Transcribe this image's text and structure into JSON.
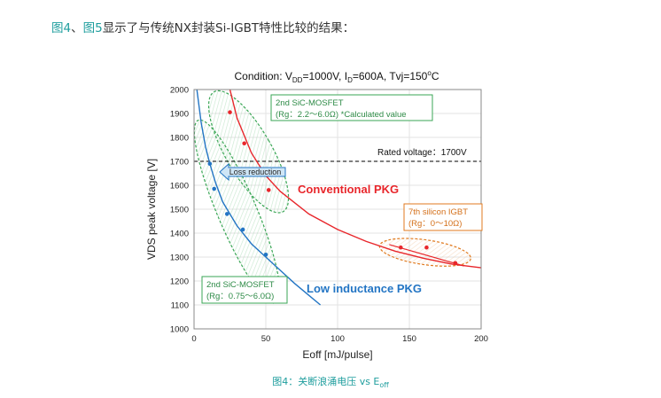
{
  "intro": {
    "link1": "图4",
    "sep": "、",
    "link2": "图5",
    "rest": "显示了与传统NX封装Si-IGBT特性比较的结果："
  },
  "caption": {
    "text": "图4：关断浪涌电压 vs E",
    "sub": "off"
  },
  "chart_data": {
    "type": "scatter",
    "title": {
      "pre": "Condition: V",
      "sub1": "DD",
      "mid1": "=1000V, I",
      "sub2": "D",
      "mid2": "=600A, Tvj=150",
      "sup": "o",
      "post": "C"
    },
    "xlabel": "Eoff [mJ/pulse]",
    "ylabel": "VDS peak voltage [V]",
    "xlim": [
      0,
      200
    ],
    "ylim": [
      1000,
      2000
    ],
    "xticks": [
      0,
      50,
      100,
      150,
      200
    ],
    "yticks": [
      1000,
      1100,
      1200,
      1300,
      1400,
      1500,
      1600,
      1700,
      1800,
      1900,
      2000
    ],
    "grid": true,
    "colors": {
      "red": "#e8262b",
      "blue": "#2375c4",
      "green": "#3aa655",
      "orange": "#e07a1f",
      "frame": "#888888"
    },
    "reference_line": {
      "y": 1700,
      "label": "Rated voltage：1700V"
    },
    "series": [
      {
        "name": "Conventional PKG",
        "points": [
          [
            25,
            1905
          ],
          [
            35,
            1775
          ],
          [
            52,
            1580
          ]
        ],
        "curve": [
          [
            25,
            2000
          ],
          [
            30,
            1880
          ],
          [
            40,
            1735
          ],
          [
            50,
            1640
          ],
          [
            60,
            1575
          ],
          [
            80,
            1480
          ],
          [
            100,
            1415
          ],
          [
            120,
            1365
          ],
          [
            140,
            1325
          ],
          [
            160,
            1295
          ],
          [
            180,
            1270
          ],
          [
            200,
            1255
          ]
        ]
      },
      {
        "name": "Low inductance PKG",
        "points": [
          [
            11,
            1690
          ],
          [
            14,
            1585
          ],
          [
            23,
            1480
          ],
          [
            34,
            1415
          ],
          [
            50,
            1310
          ]
        ],
        "curve": [
          [
            2,
            2000
          ],
          [
            5,
            1860
          ],
          [
            8,
            1760
          ],
          [
            11,
            1690
          ],
          [
            15,
            1610
          ],
          [
            20,
            1530
          ],
          [
            30,
            1430
          ],
          [
            40,
            1355
          ],
          [
            50,
            1300
          ],
          [
            60,
            1245
          ],
          [
            70,
            1190
          ],
          [
            80,
            1140
          ],
          [
            88,
            1100
          ]
        ]
      },
      {
        "name": "7th silicon IGBT",
        "points": [
          [
            144,
            1340
          ],
          [
            162,
            1340
          ],
          [
            182,
            1275
          ]
        ]
      }
    ],
    "annotations": {
      "sic2": {
        "line1": "2nd SiC-MOSFET",
        "line2": "(Rg：2.2～6.0Ω) *Calculated value"
      },
      "sic1": {
        "line1": "2nd SiC-MOSFET",
        "line2": "(Rg：0.75～6.0Ω)"
      },
      "igbt": {
        "line1": "7th silicon IGBT",
        "line2": "(Rg：0～10Ω)"
      },
      "loss": "Loss reduction",
      "conv_label": "Conventional PKG",
      "low_label": "Low inductance PKG"
    }
  }
}
